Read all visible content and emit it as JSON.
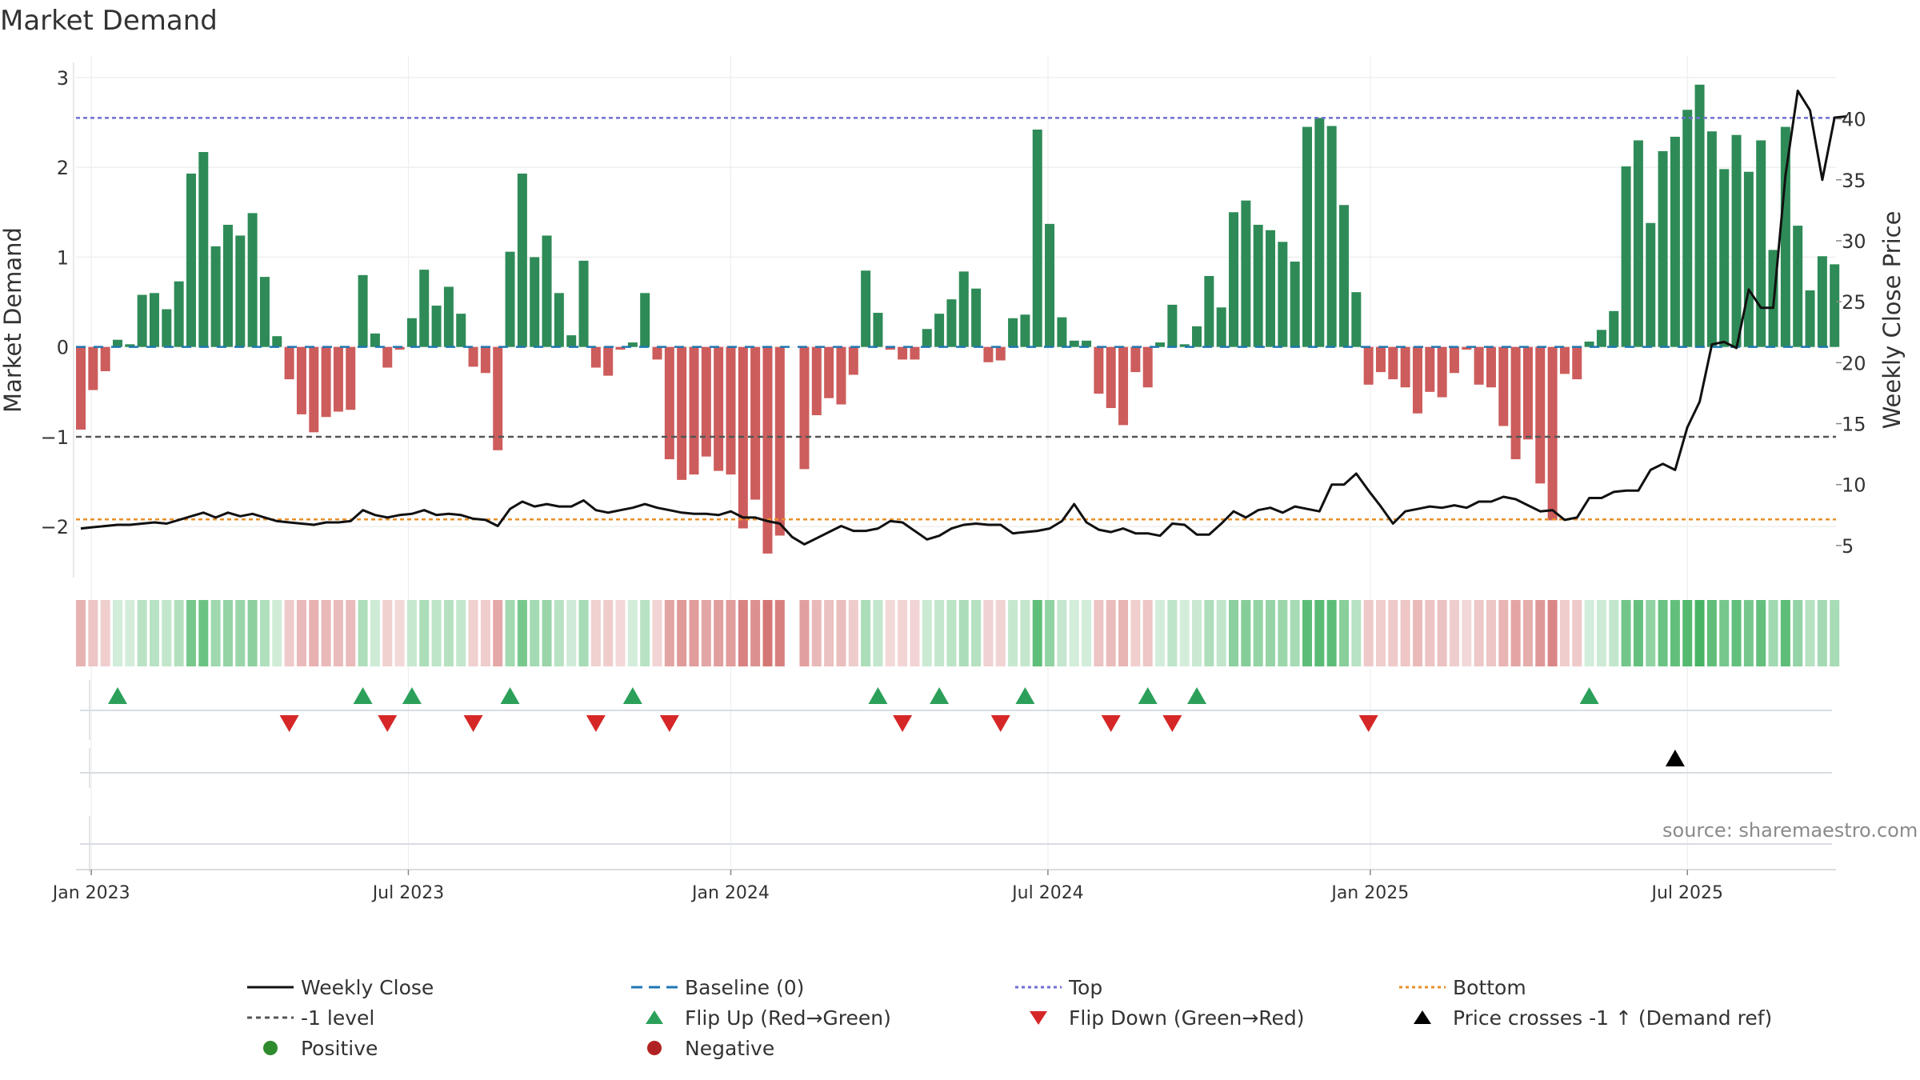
{
  "title": "Market Demand",
  "source": "source: sharemaestro.com",
  "chart_data": {
    "type": "bar",
    "weeks_start": "2023-01-02",
    "interval": "weekly",
    "demand_values": [
      -0.92,
      -0.48,
      -0.27,
      0.08,
      0.03,
      0.58,
      0.6,
      0.42,
      0.73,
      1.93,
      2.17,
      1.12,
      1.36,
      1.24,
      1.49,
      0.78,
      0.12,
      -0.36,
      -0.75,
      -0.95,
      -0.78,
      -0.72,
      -0.7,
      0.8,
      0.15,
      -0.23,
      -0.03,
      0.32,
      0.86,
      0.46,
      0.67,
      0.37,
      -0.22,
      -0.29,
      -1.15,
      1.06,
      1.93,
      1.0,
      1.24,
      0.6,
      0.13,
      0.96,
      -0.23,
      -0.32,
      -0.03,
      0.05,
      0.6,
      -0.14,
      -1.25,
      -1.48,
      -1.42,
      -1.22,
      -1.38,
      -1.42,
      -2.02,
      -1.7,
      -2.3,
      -2.1,
      null,
      -1.36,
      -0.76,
      -0.57,
      -0.64,
      -0.31,
      0.85,
      0.38,
      -0.03,
      -0.14,
      -0.14,
      0.2,
      0.37,
      0.53,
      0.84,
      0.65,
      -0.17,
      -0.15,
      0.32,
      0.36,
      2.42,
      1.37,
      0.33,
      0.07,
      0.07,
      -0.52,
      -0.68,
      -0.87,
      -0.28,
      -0.45,
      0.05,
      0.47,
      0.03,
      0.23,
      0.79,
      0.44,
      1.5,
      1.63,
      1.36,
      1.3,
      1.17,
      0.95,
      2.45,
      2.55,
      2.46,
      1.58,
      0.61,
      -0.42,
      -0.28,
      -0.36,
      -0.45,
      -0.74,
      -0.5,
      -0.56,
      -0.29,
      -0.03,
      -0.42,
      -0.45,
      -0.88,
      -1.25,
      -1.03,
      -1.52,
      -1.93,
      -0.3,
      -0.36,
      0.06,
      0.19,
      0.4,
      2.01,
      2.3,
      1.38,
      2.18,
      2.34,
      2.64,
      2.92,
      2.4,
      1.98,
      2.36,
      1.95,
      2.3,
      1.08,
      2.45,
      1.35,
      0.63,
      1.01,
      0.92
    ],
    "close_values": [
      6.4,
      6.5,
      6.6,
      6.7,
      6.7,
      6.8,
      6.9,
      6.8,
      7.1,
      7.4,
      7.7,
      7.3,
      7.7,
      7.4,
      7.6,
      7.3,
      7.0,
      6.9,
      6.8,
      6.7,
      6.9,
      6.9,
      7.0,
      7.9,
      7.5,
      7.3,
      7.5,
      7.6,
      7.9,
      7.5,
      7.6,
      7.5,
      7.2,
      7.1,
      6.6,
      8.0,
      8.6,
      8.2,
      8.4,
      8.2,
      8.2,
      8.7,
      7.9,
      7.7,
      7.9,
      8.1,
      8.4,
      8.1,
      7.9,
      7.7,
      7.6,
      7.6,
      7.5,
      7.8,
      7.3,
      7.3,
      7.0,
      6.8,
      5.7,
      5.1,
      5.6,
      6.1,
      6.6,
      6.2,
      6.2,
      6.4,
      7.0,
      6.9,
      6.2,
      5.5,
      5.8,
      6.4,
      6.7,
      6.8,
      6.7,
      6.7,
      6.0,
      6.1,
      6.2,
      6.4,
      7.0,
      8.4,
      6.9,
      6.3,
      6.1,
      6.4,
      6.0,
      6.0,
      5.8,
      6.8,
      6.7,
      5.9,
      5.9,
      6.8,
      7.8,
      7.3,
      7.9,
      8.1,
      7.7,
      8.2,
      8.0,
      7.8,
      10.0,
      10.0,
      10.9,
      9.5,
      8.2,
      6.8,
      7.8,
      8.0,
      8.2,
      8.1,
      8.3,
      8.1,
      8.6,
      8.6,
      9.0,
      8.8,
      8.3,
      7.8,
      7.9,
      7.1,
      7.3,
      8.9,
      8.9,
      9.4,
      9.5,
      9.5,
      11.2,
      11.7,
      11.2,
      14.7,
      16.8,
      21.5,
      21.7,
      21.2,
      26.0,
      24.5,
      24.5,
      35.4,
      42.3,
      40.7,
      35.0,
      40.1,
      40.2
    ],
    "flip_up_weeks": [
      3,
      23,
      27,
      35,
      45,
      65,
      70,
      77,
      87,
      91,
      123
    ],
    "flip_down_weeks": [
      17,
      25,
      32,
      42,
      48,
      67,
      75,
      84,
      89,
      105
    ],
    "cross_up_weeks": [
      130
    ],
    "top_level": 2.55,
    "bottom_level": -1.92,
    "minus_one_level": -1.0,
    "baseline": 0,
    "ylim_demand": [
      -2.55,
      3.15
    ],
    "ylim_price": [
      2.5,
      44.5
    ],
    "yticks_demand": [
      -2,
      -1,
      0,
      1,
      2,
      3
    ],
    "yticks_price": [
      5,
      10,
      15,
      20,
      25,
      30,
      35,
      40
    ],
    "ylabel": "Market Demand",
    "ylabel_right": "Weekly Close Price",
    "xticks": [
      {
        "label": "Jan 2023",
        "week": 0.86
      },
      {
        "label": "Jul 2023",
        "week": 26.71
      },
      {
        "label": "Jan 2024",
        "week": 53.0
      },
      {
        "label": "Jul 2024",
        "week": 78.86
      },
      {
        "label": "Jan 2025",
        "week": 105.14
      },
      {
        "label": "Jul 2025",
        "week": 131.0
      }
    ],
    "colors": {
      "positive": "#2e8b57",
      "negative": "#cd5c5c",
      "close": "#111111",
      "top": "#6f6fd0",
      "bottom": "#e8902a",
      "minus_one": "#555555",
      "baseline": "#1f77b4",
      "flip_up": "#2ca05a",
      "flip_down": "#d62728",
      "cross": "#000000"
    }
  },
  "legend": [
    {
      "key": "close",
      "label": "Weekly Close"
    },
    {
      "key": "baseline",
      "label": "Baseline (0)"
    },
    {
      "key": "top",
      "label": "Top"
    },
    {
      "key": "bottom",
      "label": "Bottom"
    },
    {
      "key": "minus_one",
      "label": "-1 level"
    },
    {
      "key": "flip_up",
      "label": "Flip Up (Red→Green)"
    },
    {
      "key": "flip_down",
      "label": "Flip Down (Green→Red)"
    },
    {
      "key": "cross",
      "label": "Price crosses -1 ↑ (Demand ref)"
    },
    {
      "key": "positive",
      "label": "Positive"
    },
    {
      "key": "negative",
      "label": "Negative"
    }
  ]
}
